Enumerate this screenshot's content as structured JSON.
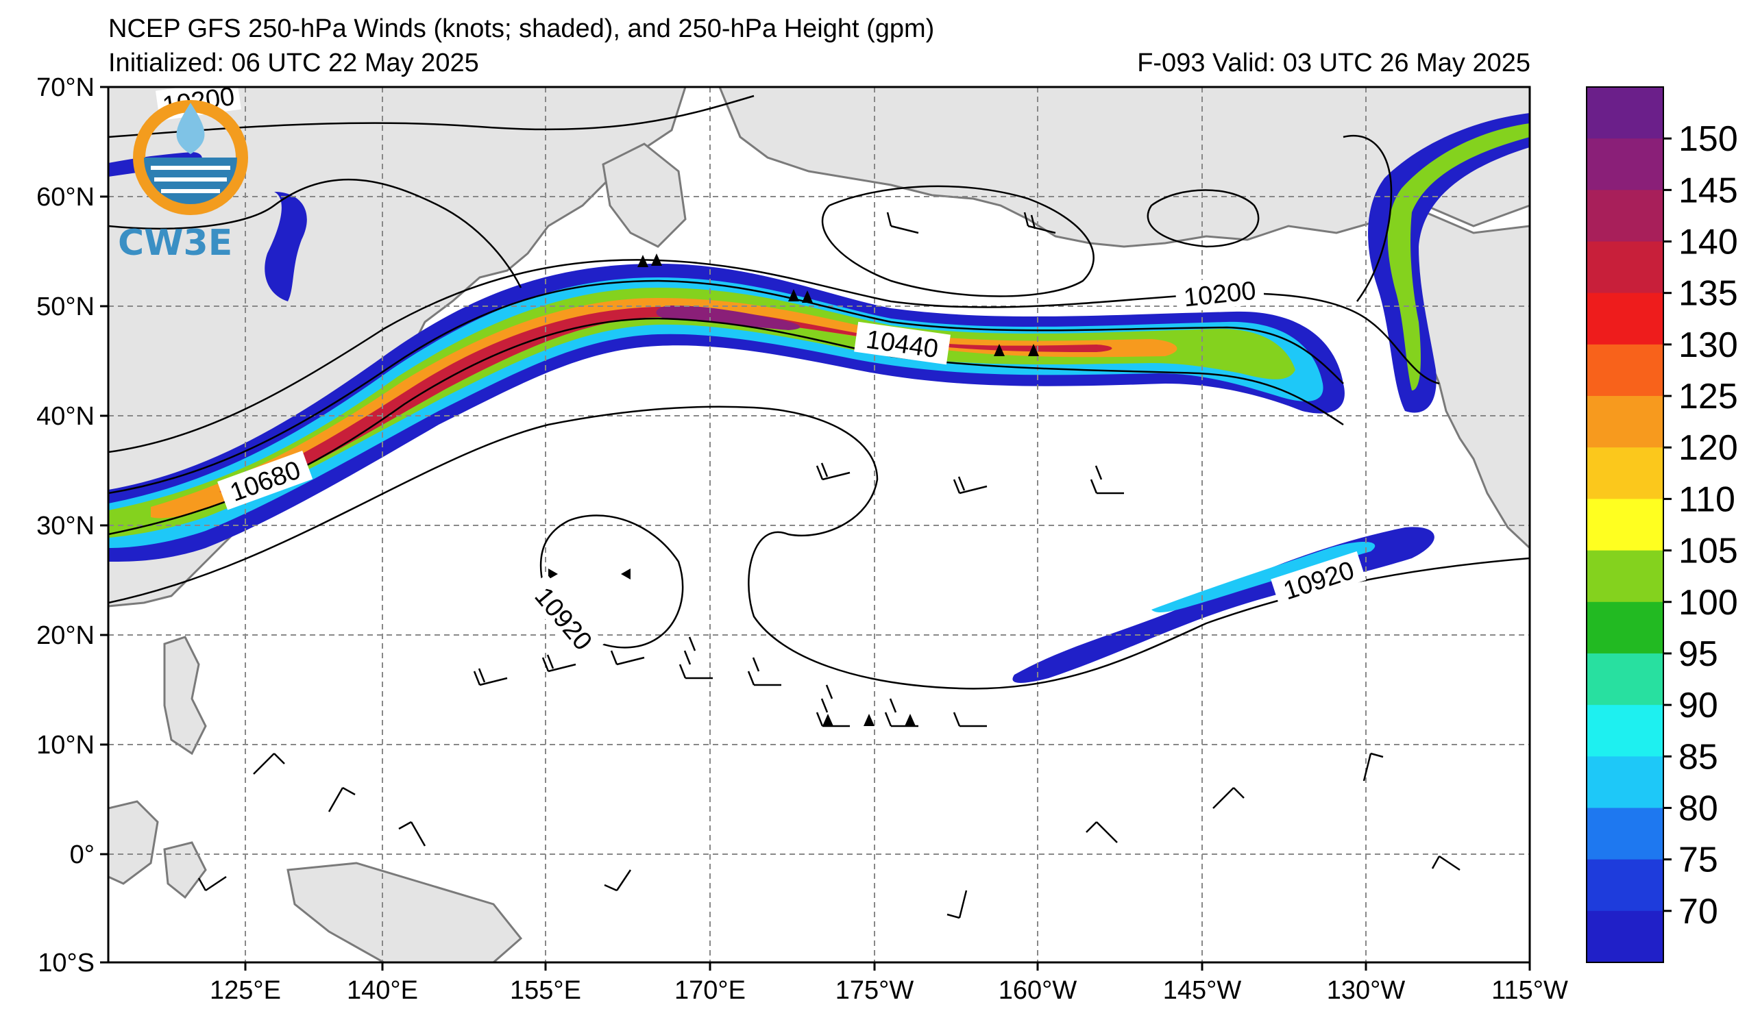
{
  "header": {
    "title": "NCEP GFS 250-hPa Winds (knots; shaded), and 250-hPa Height (gpm)",
    "initialized": "Initialized: 06 UTC 22 May 2025",
    "valid": "F-093  Valid: 03 UTC 26 May 2025"
  },
  "logo": {
    "text": "CW3E"
  },
  "map": {
    "lat_labels": [
      "70°N",
      "60°N",
      "50°N",
      "40°N",
      "30°N",
      "20°N",
      "10°N",
      "0°",
      "10°S"
    ],
    "lon_labels": [
      "125°E",
      "140°E",
      "155°E",
      "170°E",
      "175°W",
      "160°W",
      "145°W",
      "130°W",
      "115°W"
    ],
    "contour_labels": [
      "10200",
      "10200",
      "10440",
      "10680",
      "10920",
      "10920"
    ]
  },
  "colorbar": {
    "labels": [
      "150",
      "145",
      "140",
      "135",
      "130",
      "125",
      "120",
      "110",
      "105",
      "100",
      "95",
      "90",
      "85",
      "80",
      "75",
      "70"
    ],
    "colors": [
      "#6b1f8a",
      "#8a1f78",
      "#a81f5a",
      "#c81f3a",
      "#ee1c1c",
      "#f8621b",
      "#f79a1e",
      "#fbc81c",
      "#ffff20",
      "#84d21e",
      "#22ba22",
      "#28e0a0",
      "#1ef0f0",
      "#1ec8f8",
      "#1e78f0",
      "#1e3cdc",
      "#2020c8"
    ]
  },
  "colors": {
    "land": "#e4e4e4",
    "coast": "#7a7a7a",
    "contour": "#000000",
    "grid": "#888888"
  }
}
